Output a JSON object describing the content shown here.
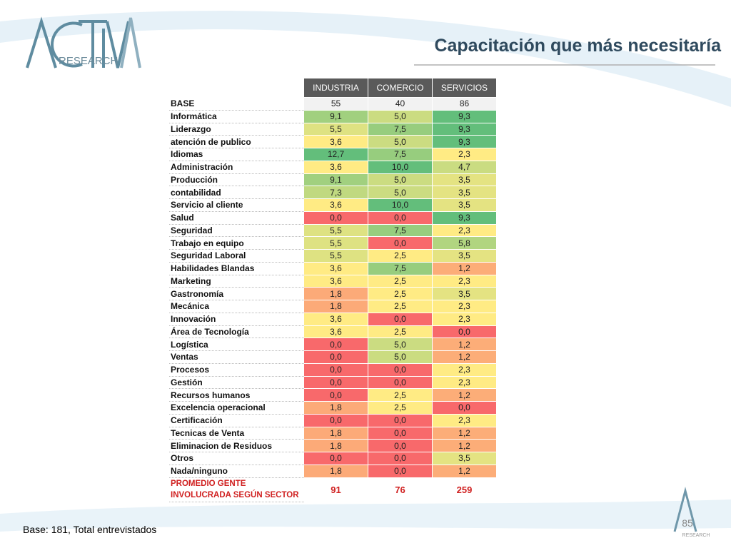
{
  "header": {
    "logo_text": "RESEARCH",
    "title": "Capacitación que más necesitaría"
  },
  "table": {
    "columns": [
      "INDUSTRIA",
      "COMERCIO",
      "SERVICIOS"
    ],
    "base": {
      "label": "BASE",
      "values": [
        "55",
        "40",
        "86"
      ]
    },
    "rows": [
      {
        "label": "Informática",
        "values": [
          "9,1",
          "5,0",
          "9,3"
        ]
      },
      {
        "label": "Liderazgo",
        "values": [
          "5,5",
          "7,5",
          "9,3"
        ]
      },
      {
        "label": "atención de publico",
        "values": [
          "3,6",
          "5,0",
          "9,3"
        ]
      },
      {
        "label": "Idiomas",
        "values": [
          "12,7",
          "7,5",
          "2,3"
        ]
      },
      {
        "label": "Administración",
        "values": [
          "3,6",
          "10,0",
          "4,7"
        ]
      },
      {
        "label": "Producción",
        "values": [
          "9,1",
          "5,0",
          "3,5"
        ]
      },
      {
        "label": "contabilidad",
        "values": [
          "7,3",
          "5,0",
          "3,5"
        ]
      },
      {
        "label": "Servicio al cliente",
        "values": [
          "3,6",
          "10,0",
          "3,5"
        ]
      },
      {
        "label": "Salud",
        "values": [
          "0,0",
          "0,0",
          "9,3"
        ]
      },
      {
        "label": "Seguridad",
        "values": [
          "5,5",
          "7,5",
          "2,3"
        ]
      },
      {
        "label": "Trabajo en equipo",
        "values": [
          "5,5",
          "0,0",
          "5,8"
        ]
      },
      {
        "label": "Seguridad Laboral",
        "values": [
          "5,5",
          "2,5",
          "3,5"
        ]
      },
      {
        "label": "Habilidades Blandas",
        "values": [
          "3,6",
          "7,5",
          "1,2"
        ]
      },
      {
        "label": "Marketing",
        "values": [
          "3,6",
          "2,5",
          "2,3"
        ]
      },
      {
        "label": "Gastronomía",
        "values": [
          "1,8",
          "2,5",
          "3,5"
        ]
      },
      {
        "label": "Mecánica",
        "values": [
          "1,8",
          "2,5",
          "2,3"
        ]
      },
      {
        "label": "Innovación",
        "values": [
          "3,6",
          "0,0",
          "2,3"
        ]
      },
      {
        "label": "Área de Tecnología",
        "values": [
          "3,6",
          "2,5",
          "0,0"
        ]
      },
      {
        "label": "Logística",
        "values": [
          "0,0",
          "5,0",
          "1,2"
        ]
      },
      {
        "label": "Ventas",
        "values": [
          "0,0",
          "5,0",
          "1,2"
        ]
      },
      {
        "label": "Procesos",
        "values": [
          "0,0",
          "0,0",
          "2,3"
        ]
      },
      {
        "label": "Gestión",
        "values": [
          "0,0",
          "0,0",
          "2,3"
        ]
      },
      {
        "label": "Recursos humanos",
        "values": [
          "0,0",
          "2,5",
          "1,2"
        ]
      },
      {
        "label": "Excelencia operacional",
        "values": [
          "1,8",
          "2,5",
          "0,0"
        ]
      },
      {
        "label": "Certificación",
        "values": [
          "0,0",
          "0,0",
          "2,3"
        ]
      },
      {
        "label": "Tecnicas de Venta",
        "values": [
          "1,8",
          "0,0",
          "1,2"
        ]
      },
      {
        "label": "Eliminacion de Residuos",
        "values": [
          "1,8",
          "0,0",
          "1,2"
        ]
      },
      {
        "label": "Otros",
        "values": [
          "0,0",
          "0,0",
          "3,5"
        ]
      },
      {
        "label": "Nada/ninguno",
        "values": [
          "1,8",
          "0,0",
          "1,2"
        ]
      }
    ],
    "total": {
      "label": "PROMEDIO GENTE INVOLUCRADA SEGÚN SECTOR",
      "values": [
        "91",
        "76",
        "259"
      ]
    }
  },
  "footer": {
    "note": "Base: 181, Total entrevistados",
    "page": "85",
    "logo_text": "RESEARCH"
  }
}
